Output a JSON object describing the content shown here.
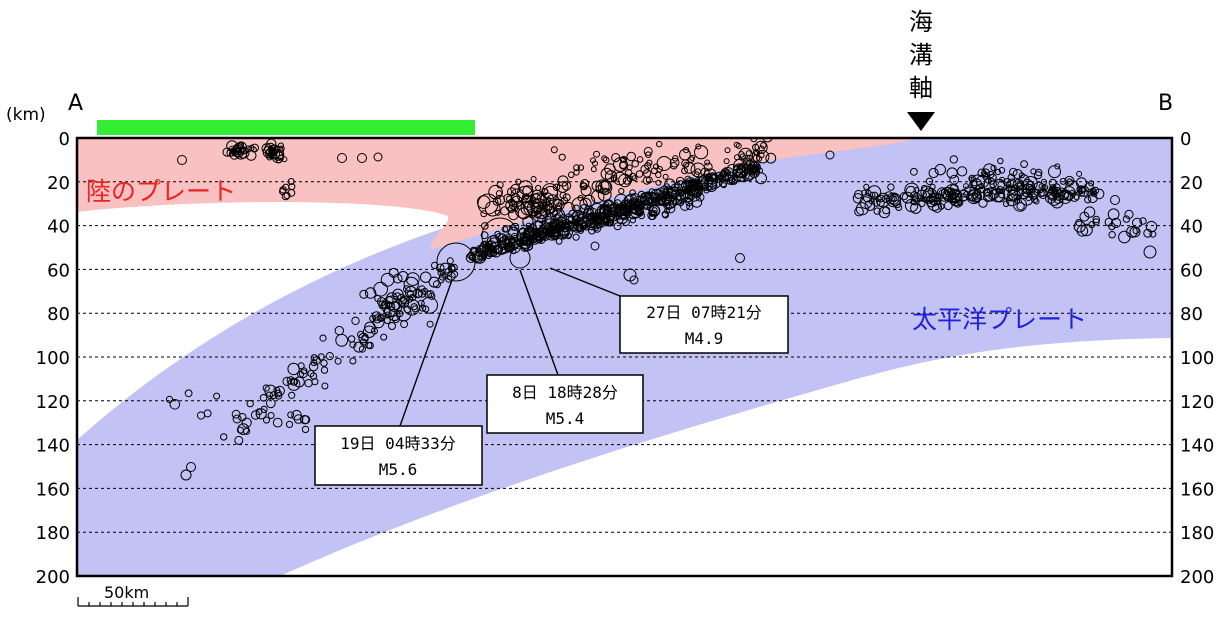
{
  "labels": {
    "unit": "(km)",
    "point_a": "A",
    "point_b": "B",
    "trench_chars": [
      "海",
      "溝",
      "軸"
    ],
    "land_plate": "陸のプレート",
    "pacific_plate": "太平洋プレート",
    "scale": "50km"
  },
  "colors": {
    "land_plate": "#f9c1c1",
    "pacific_plate": "#c2c2f5",
    "land_bar": "#33ee33",
    "land_plate_text": "#ee2222",
    "pacific_plate_text": "#2222dd",
    "quake_outline": "#000000"
  },
  "depth_axis": {
    "min": 0,
    "max": 200,
    "step": 20,
    "ticks": [
      "0",
      "20",
      "40",
      "60",
      "80",
      "100",
      "120",
      "140",
      "160",
      "180",
      "200"
    ]
  },
  "callouts": [
    {
      "line1": "27日 07時21分",
      "line2": "M4.9"
    },
    {
      "line1": "8日 18時28分",
      "line2": "M5.4"
    },
    {
      "line1": "19日 04時33分",
      "line2": "M5.6"
    }
  ]
}
